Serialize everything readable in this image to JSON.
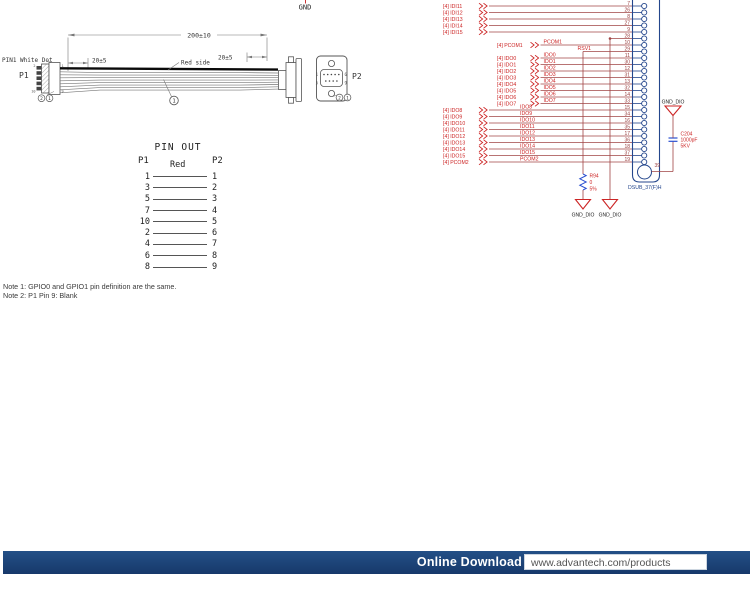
{
  "drawing": {
    "gnd": "GND",
    "dim_length": "200±10",
    "dim_left": "20±5",
    "dim_right": "20±5",
    "pin1_note": "PIN1 White Dot",
    "p1": "P1",
    "p2": "P2",
    "red_side": "Red side",
    "balloon_cable": "1",
    "p1_pin_tl": "2",
    "p1_pin_tr": "1",
    "p1_pin_bl": "10",
    "p1_pin_br": "9",
    "p1_balloons": [
      "2",
      "1"
    ],
    "p2_balloons": [
      "2",
      "1"
    ],
    "db9": {
      "tl": "1",
      "tr": "6",
      "bl": "5",
      "br": "9"
    }
  },
  "pinout": {
    "title": "PIN OUT",
    "p1": "P1",
    "p2": "P2",
    "wire": "Red",
    "rows": [
      {
        "p1": "1",
        "p2": "1"
      },
      {
        "p1": "3",
        "p2": "2"
      },
      {
        "p1": "5",
        "p2": "3"
      },
      {
        "p1": "7",
        "p2": "4"
      },
      {
        "p1": "10",
        "p2": "5"
      },
      {
        "p1": "2",
        "p2": "6"
      },
      {
        "p1": "4",
        "p2": "7"
      },
      {
        "p1": "6",
        "p2": "8"
      },
      {
        "p1": "8",
        "p2": "9"
      }
    ]
  },
  "schematic": {
    "rows": [
      {
        "label": "[4] IDI11",
        "net": "",
        "pin": "7",
        "group": "far"
      },
      {
        "label": "[4] IDI12",
        "net": "",
        "pin": "26",
        "group": "far"
      },
      {
        "label": "[4] IDI13",
        "net": "",
        "pin": "8",
        "group": "far"
      },
      {
        "label": "[4] IDI14",
        "net": "",
        "pin": "27",
        "group": "far"
      },
      {
        "label": "[4] IDI15",
        "net": "",
        "pin": "9",
        "group": "far"
      },
      {
        "label": "",
        "net": "",
        "pin": "28",
        "group": "gnd"
      },
      {
        "label": "[4] PCOM1",
        "net": "PCOM1",
        "pin": "10",
        "group": "mid"
      },
      {
        "label": "",
        "net": "RSV1",
        "pin": "29",
        "group": "rsv"
      },
      {
        "label": "[4] IDO0",
        "net": "IDO0",
        "pin": "11",
        "group": "mid"
      },
      {
        "label": "[4] IDO1",
        "net": "IDO1",
        "pin": "30",
        "group": "mid"
      },
      {
        "label": "[4] IDO2",
        "net": "IDO2",
        "pin": "12",
        "group": "mid"
      },
      {
        "label": "[4] IDO3",
        "net": "IDO3",
        "pin": "31",
        "group": "mid"
      },
      {
        "label": "[4] IDO4",
        "net": "IDO4",
        "pin": "13",
        "group": "mid"
      },
      {
        "label": "[4] IDO5",
        "net": "IDO5",
        "pin": "32",
        "group": "mid"
      },
      {
        "label": "[4] IDO6",
        "net": "IDO6",
        "pin": "14",
        "group": "mid"
      },
      {
        "label": "[4] IDO7",
        "net": "IDO7",
        "pin": "33",
        "group": "mid"
      },
      {
        "label": "[4] IDO8",
        "net": "IDO8",
        "pin": "15",
        "group": "far"
      },
      {
        "label": "[4] IDO9",
        "net": "IDO9",
        "pin": "34",
        "group": "far"
      },
      {
        "label": "[4] IDO10",
        "net": "IDO10",
        "pin": "16",
        "group": "far"
      },
      {
        "label": "[4] IDO11",
        "net": "IDO11",
        "pin": "35",
        "group": "far"
      },
      {
        "label": "[4] IDO12",
        "net": "IDO12",
        "pin": "17",
        "group": "far"
      },
      {
        "label": "[4] IDO13",
        "net": "IDO13",
        "pin": "36",
        "group": "far"
      },
      {
        "label": "[4] IDO14",
        "net": "IDO14",
        "pin": "18",
        "group": "far"
      },
      {
        "label": "[4] IDO15",
        "net": "IDO15",
        "pin": "37",
        "group": "far"
      },
      {
        "label": "[4] PCOM2",
        "net": "PCOM2",
        "pin": "19",
        "group": "far"
      }
    ],
    "r94": {
      "ref": "R94",
      "val": "0",
      "tol": "5%"
    },
    "c204": {
      "ref": "C204",
      "val": "1000pF",
      "rating": "5KV"
    },
    "dsub": "DSUB_37(F)H",
    "pin39": "39",
    "gnd_dio": "GND_DIO",
    "colors": {
      "wire": "#a04545",
      "label": "#cc2525",
      "pin": "#9a4040",
      "blue": "#2a4fd0",
      "body": "#24468c"
    }
  },
  "notes": [
    "Note 1: GPIO0 and GPIO1 pin definition are the same.",
    "Note 2: P1 Pin 9: Blank"
  ],
  "footer": {
    "label": "Online Download",
    "url": "www.advantech.com/products"
  }
}
